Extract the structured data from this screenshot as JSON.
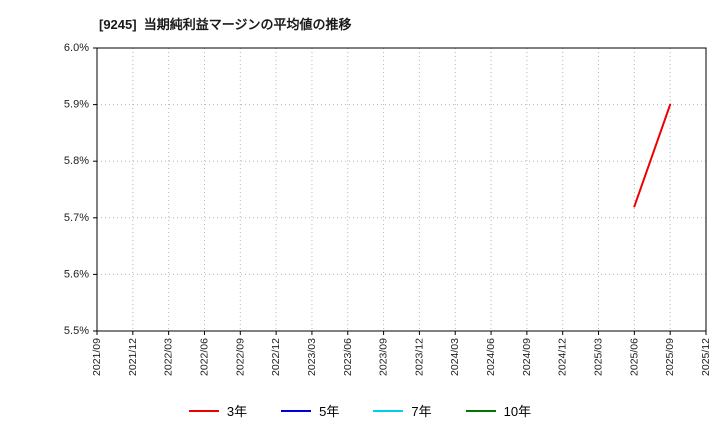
{
  "title": "[9245]  当期純利益マージンの平均値の推移",
  "chart_data": {
    "type": "line",
    "title": "[9245]  当期純利益マージンの平均値の推移",
    "xlabel": "",
    "ylabel": "",
    "ylim": [
      5.5,
      6.0
    ],
    "y_ticks": [
      5.5,
      5.6,
      5.7,
      5.8,
      5.9,
      6.0
    ],
    "y_tick_labels": [
      "5.5%",
      "5.6%",
      "5.7%",
      "5.8%",
      "5.9%",
      "6.0%"
    ],
    "x_labels": [
      "2021/09",
      "2021/12",
      "2022/03",
      "2022/06",
      "2022/09",
      "2022/12",
      "2023/03",
      "2023/06",
      "2023/09",
      "2023/12",
      "2024/03",
      "2024/06",
      "2024/09",
      "2024/12",
      "2025/03",
      "2025/06",
      "2025/09",
      "2025/12"
    ],
    "grid": true,
    "grid_style": "dotted",
    "legend_position": "bottom",
    "series": [
      {
        "name": "3年",
        "color": "#ee0000",
        "points": [
          {
            "x": "2025/06",
            "y": 5.72
          },
          {
            "x": "2025/09",
            "y": 5.9
          }
        ]
      },
      {
        "name": "5年",
        "color": "#0000dd",
        "points": []
      },
      {
        "name": "7年",
        "color": "#00ccee",
        "points": []
      },
      {
        "name": "10年",
        "color": "#007700",
        "points": []
      }
    ],
    "colors": {
      "grid": "#b5b5b5",
      "axis_border": "#000000",
      "tick_text": "#222222"
    }
  }
}
